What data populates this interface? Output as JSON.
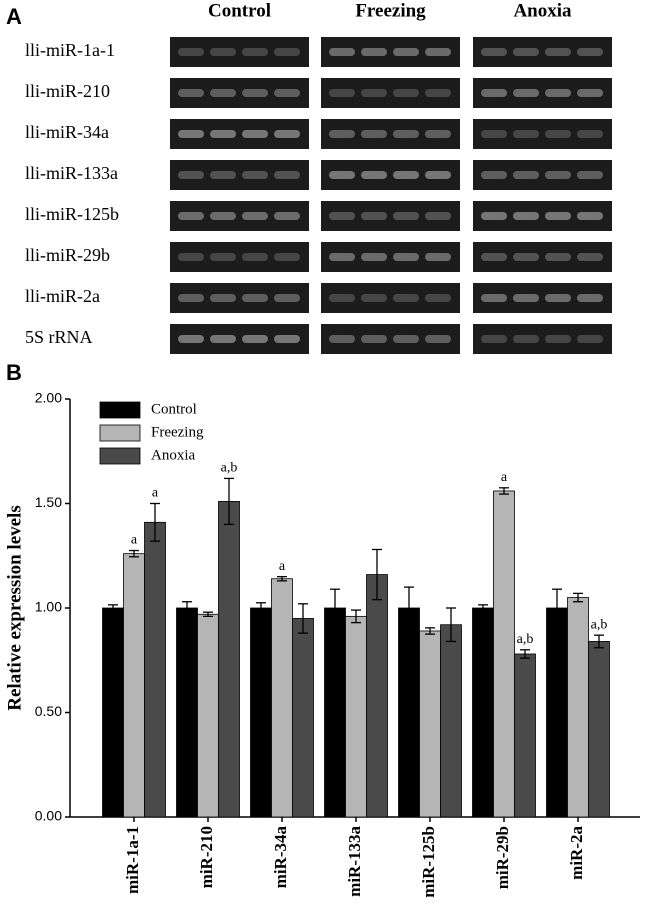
{
  "gel": {
    "panel_label": "A",
    "conditions": [
      "Control",
      "Freezing",
      "Anoxia"
    ],
    "genes": [
      "lli-miR-1a-1",
      "lli-miR-210",
      "lli-miR-34a",
      "lli-miR-133a",
      "lli-miR-125b",
      "lli-miR-29b",
      "lli-miR-2a",
      "5S rRNA"
    ]
  },
  "chart_data": {
    "type": "bar",
    "panel_label": "B",
    "y_label": "Relative expression levels",
    "categories": [
      "miR-1a-1",
      "miR-210",
      "miR-34a",
      "miR-133a",
      "miR-125b",
      "miR-29b",
      "miR-2a"
    ],
    "series": [
      {
        "name": "Control",
        "color": "#000000",
        "values": [
          1.0,
          1.0,
          1.0,
          1.0,
          1.0,
          1.0,
          1.0
        ],
        "errors": [
          0.015,
          0.03,
          0.025,
          0.09,
          0.1,
          0.015,
          0.09
        ],
        "annotations": [
          null,
          null,
          null,
          null,
          null,
          null,
          null
        ]
      },
      {
        "name": "Freezing",
        "color": "#b5b5b5",
        "values": [
          1.26,
          0.97,
          1.14,
          0.96,
          0.89,
          1.56,
          1.05
        ],
        "errors": [
          0.015,
          0.01,
          0.01,
          0.03,
          0.015,
          0.015,
          0.02
        ],
        "annotations": [
          "a",
          null,
          "a",
          null,
          null,
          "a",
          null
        ]
      },
      {
        "name": "Anoxia",
        "color": "#4a4a4a",
        "values": [
          1.41,
          1.51,
          0.95,
          1.16,
          0.92,
          0.78,
          0.84
        ],
        "errors": [
          0.09,
          0.11,
          0.07,
          0.12,
          0.08,
          0.02,
          0.03
        ],
        "annotations": [
          "a",
          "a,b",
          null,
          null,
          null,
          "a,b",
          "a,b"
        ]
      }
    ],
    "ylim": [
      0,
      2
    ],
    "yticks": [
      {
        "value": 0,
        "label": "0.00"
      },
      {
        "value": 0.5,
        "label": "0.50"
      },
      {
        "value": 1,
        "label": "1.00"
      },
      {
        "value": 1.5,
        "label": "1.50"
      },
      {
        "value": 2,
        "label": "2.00"
      }
    ],
    "legend": "upper left"
  }
}
